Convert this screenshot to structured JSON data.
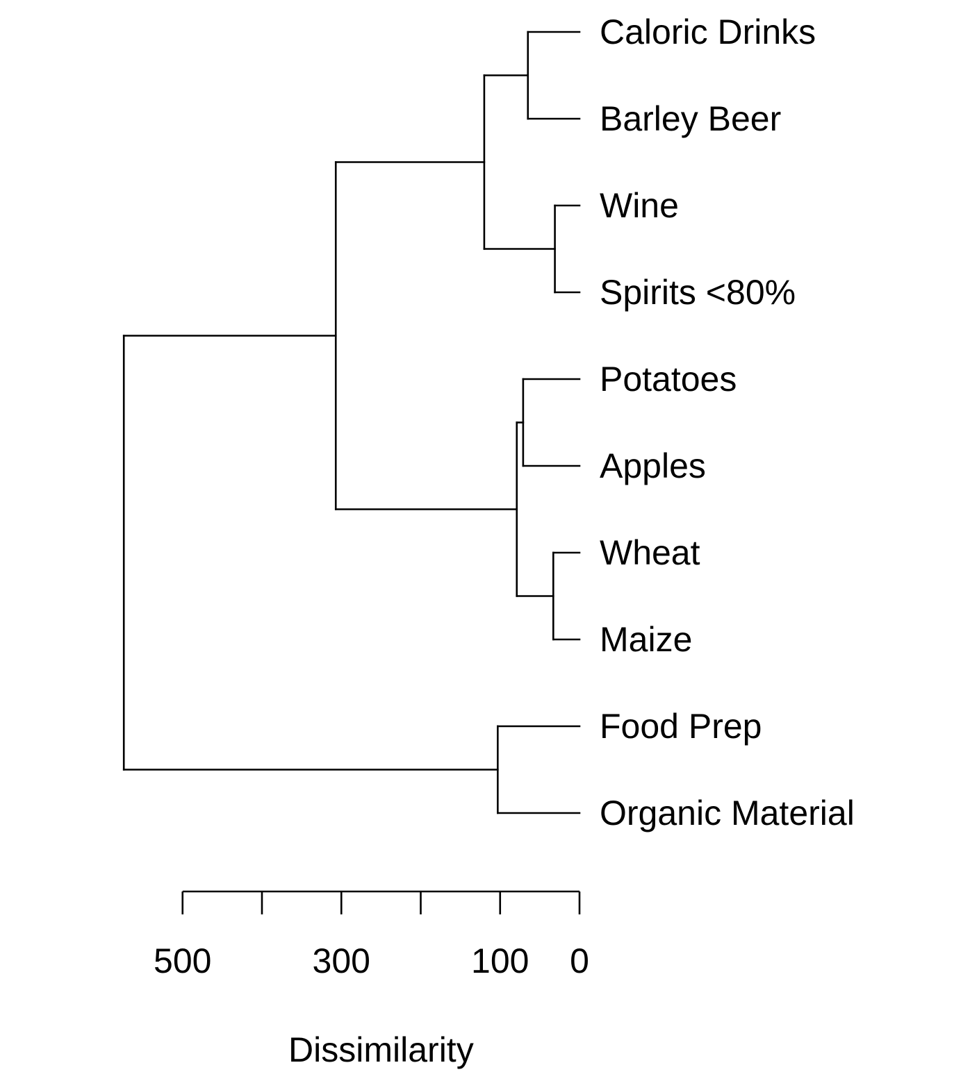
{
  "chart_data": {
    "type": "dendrogram",
    "orientation": "horizontal",
    "leaves": [
      "Caloric Drinks",
      "Barley Beer",
      "Wine",
      "Spirits <80%",
      "Potatoes",
      "Apples",
      "Wheat",
      "Maize",
      "Food Prep",
      "Organic Material"
    ],
    "merges": [
      {
        "id": "m1",
        "children": [
          "Caloric Drinks",
          "Barley Beer"
        ],
        "height": 65
      },
      {
        "id": "m2",
        "children": [
          "Wine",
          "Spirits <80%"
        ],
        "height": 31
      },
      {
        "id": "m3",
        "children": [
          "m1",
          "m2"
        ],
        "height": 120
      },
      {
        "id": "m4",
        "children": [
          "Potatoes",
          "Apples"
        ],
        "height": 71
      },
      {
        "id": "m5",
        "children": [
          "Wheat",
          "Maize"
        ],
        "height": 33
      },
      {
        "id": "m6",
        "children": [
          "m4",
          "m5"
        ],
        "height": 79
      },
      {
        "id": "m7",
        "children": [
          "m3",
          "m6"
        ],
        "height": 307
      },
      {
        "id": "m8",
        "children": [
          "Food Prep",
          "Organic Material"
        ],
        "height": 103
      },
      {
        "id": "m9",
        "children": [
          "m7",
          "m8"
        ],
        "height": 574
      }
    ],
    "axis": {
      "label": "Dissimilarity",
      "range": [
        0,
        500
      ],
      "ticks": [
        500,
        400,
        300,
        200,
        100,
        0
      ],
      "tick_labels": [
        {
          "value": 500,
          "label": "500"
        },
        {
          "value": 300,
          "label": "300"
        },
        {
          "value": 100,
          "label": "100"
        },
        {
          "value": 0,
          "label": "0"
        }
      ]
    },
    "line_color": "#000000"
  }
}
